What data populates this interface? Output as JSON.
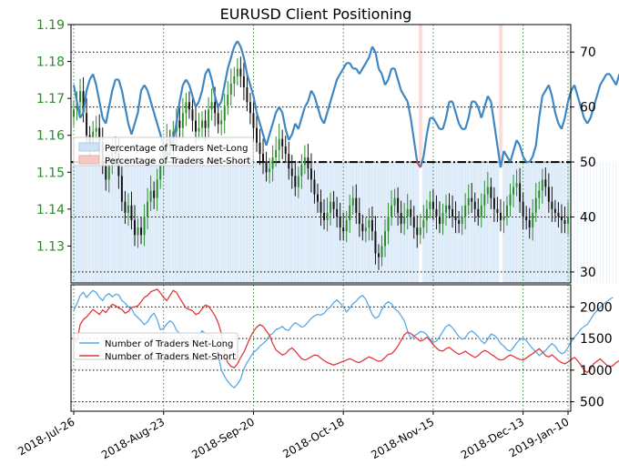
{
  "chart_data": [
    {
      "type": "line",
      "title": "EURUSD Client Positioning",
      "x_tick_labels": [
        "2018-Jul-26",
        "2018-Aug-23",
        "2018-Sep-20",
        "2018-Oct-18",
        "2018-Nov-15",
        "2018-Dec-13",
        "2019-Jan-10"
      ],
      "left_axis": {
        "ticks": [
          "1.13",
          "1.14",
          "1.15",
          "1.16",
          "1.17",
          "1.18",
          "1.19"
        ],
        "ylim": [
          1.12,
          1.19
        ],
        "color": "#2a8a2a"
      },
      "right_axis": {
        "ticks": [
          "30",
          "40",
          "50",
          "60",
          "70"
        ],
        "ylim": [
          28,
          75
        ]
      },
      "legend": {
        "position": "upper-left",
        "entries": [
          {
            "label": "Percentage of Traders Net-Long",
            "color": "#cfe3f7"
          },
          {
            "label": "Percentage of Traders Net-Short",
            "color": "#f7c9c4"
          }
        ]
      },
      "reference_line": {
        "y": 50,
        "style": "dash-dot",
        "color": "#000000"
      },
      "series": [
        {
          "kind": "candlestick",
          "axis": "left",
          "colors": {
            "up": "#2a8a2a",
            "down": "#111111"
          },
          "close": [
            1.167,
            1.169,
            1.172,
            1.166,
            1.16,
            1.158,
            1.161,
            1.162,
            1.158,
            1.152,
            1.148,
            1.152,
            1.156,
            1.155,
            1.149,
            1.142,
            1.139,
            1.141,
            1.137,
            1.133,
            1.135,
            1.133,
            1.138,
            1.142,
            1.145,
            1.143,
            1.148,
            1.152,
            1.156,
            1.159,
            1.157,
            1.161,
            1.164,
            1.162,
            1.166,
            1.169,
            1.167,
            1.164,
            1.161,
            1.162,
            1.164,
            1.162,
            1.167,
            1.169,
            1.166,
            1.163,
            1.164,
            1.168,
            1.171,
            1.174,
            1.176,
            1.178,
            1.176,
            1.173,
            1.169,
            1.166,
            1.162,
            1.158,
            1.155,
            1.153,
            1.15,
            1.151,
            1.154,
            1.156,
            1.159,
            1.157,
            1.155,
            1.151,
            1.149,
            1.146,
            1.149,
            1.152,
            1.154,
            1.151,
            1.148,
            1.144,
            1.142,
            1.139,
            1.137,
            1.139,
            1.142,
            1.14,
            1.138,
            1.135,
            1.134,
            1.137,
            1.141,
            1.143,
            1.139,
            1.136,
            1.134,
            1.135,
            1.137,
            1.134,
            1.128,
            1.127,
            1.13,
            1.134,
            1.138,
            1.141,
            1.143,
            1.139,
            1.136,
            1.138,
            1.14,
            1.138,
            1.135,
            1.133,
            1.135,
            1.137,
            1.14,
            1.142,
            1.14,
            1.138,
            1.136,
            1.139,
            1.141,
            1.14,
            1.138,
            1.137,
            1.136,
            1.138,
            1.141,
            1.143,
            1.142,
            1.14,
            1.138,
            1.141,
            1.144,
            1.146,
            1.143,
            1.14,
            1.139,
            1.137,
            1.138,
            1.141,
            1.144,
            1.146,
            1.147,
            1.142,
            1.138,
            1.137,
            1.135,
            1.139,
            1.143,
            1.145,
            1.148,
            1.146,
            1.142,
            1.14,
            1.139,
            1.138,
            1.137,
            1.136,
            1.138
          ]
        },
        {
          "name": "Percentage of Traders Net-Long",
          "axis": "right",
          "color": "#3d87c4",
          "values": [
            64,
            61,
            58,
            59,
            63,
            65,
            66,
            64,
            61,
            58,
            57,
            60,
            63,
            65,
            65,
            63,
            60,
            57,
            55,
            57,
            59,
            63,
            64,
            63,
            61,
            59,
            57,
            55,
            53,
            51,
            52,
            54,
            57,
            61,
            64,
            65,
            64,
            62,
            60,
            61,
            63,
            66,
            67,
            65,
            62,
            60,
            61,
            64,
            67,
            69,
            71,
            72,
            71,
            69,
            66,
            64,
            62,
            59,
            57,
            55,
            53,
            55,
            57,
            59,
            60,
            59,
            56,
            54,
            55,
            57,
            56,
            58,
            60,
            61,
            63,
            62,
            60,
            58,
            57,
            59,
            61,
            63,
            65,
            66,
            67,
            68,
            68,
            67,
            67,
            66,
            67,
            68,
            69,
            71,
            70,
            67,
            66,
            64,
            65,
            67,
            67,
            65,
            63,
            62,
            61,
            58,
            54,
            50,
            49,
            51,
            55,
            58,
            58,
            57,
            56,
            56,
            58,
            61,
            61,
            59,
            57,
            56,
            56,
            58,
            61,
            61,
            60,
            58,
            60,
            62,
            61,
            57,
            53,
            49,
            52,
            51,
            50,
            52,
            54,
            53,
            51,
            50,
            50,
            51,
            53,
            58,
            62,
            63,
            64,
            62,
            59,
            57,
            56,
            58,
            61,
            63,
            64,
            62,
            60,
            58,
            57,
            58,
            60,
            62,
            64,
            65,
            66,
            66,
            65,
            64,
            66
          ]
        }
      ]
    },
    {
      "type": "line",
      "y_ticks": [
        "500",
        "1000",
        "1500",
        "2000"
      ],
      "ylim": [
        350,
        2350
      ],
      "legend": {
        "position": "center-left",
        "entries": [
          {
            "label": "Number of Traders Net-Long",
            "color": "#56a8e8"
          },
          {
            "label": "Number of Traders Net-Short",
            "color": "#e0393a"
          }
        ]
      },
      "series": [
        {
          "name": "Number of Traders Net-Long",
          "color": "#56a8e8",
          "values": [
            1950,
            2050,
            2180,
            2230,
            2150,
            2210,
            2260,
            2230,
            2150,
            2100,
            2180,
            2210,
            2160,
            2200,
            2190,
            2100,
            2060,
            2000,
            1970,
            1880,
            1830,
            1780,
            1720,
            1760,
            1850,
            1900,
            1800,
            1640,
            1660,
            1730,
            1780,
            1740,
            1630,
            1580,
            1510,
            1450,
            1400,
            1470,
            1500,
            1550,
            1620,
            1580,
            1560,
            1550,
            1400,
            1250,
            1000,
            900,
            820,
            760,
            720,
            780,
            860,
            1020,
            1120,
            1200,
            1280,
            1320,
            1380,
            1420,
            1470,
            1550,
            1580,
            1640,
            1660,
            1690,
            1640,
            1630,
            1700,
            1750,
            1720,
            1680,
            1700,
            1760,
            1820,
            1860,
            1880,
            1870,
            1900,
            1960,
            2000,
            2070,
            2110,
            2060,
            2000,
            1920,
            1980,
            2050,
            2090,
            2150,
            2180,
            2120,
            2000,
            1880,
            1820,
            1850,
            1960,
            2040,
            2080,
            2050,
            1970,
            1930,
            1860,
            1780,
            1620,
            1500,
            1540,
            1570,
            1610,
            1600,
            1560,
            1490,
            1440,
            1460,
            1530,
            1610,
            1690,
            1720,
            1670,
            1600,
            1530,
            1490,
            1510,
            1590,
            1620,
            1580,
            1530,
            1460,
            1420,
            1490,
            1570,
            1550,
            1500,
            1420,
            1380,
            1320,
            1300,
            1360,
            1430,
            1480,
            1510,
            1470,
            1400,
            1340,
            1290,
            1230,
            1270,
            1310,
            1370,
            1420,
            1380,
            1300,
            1260,
            1280,
            1360,
            1450,
            1520,
            1580,
            1650,
            1690,
            1720,
            1800,
            1880,
            1940,
            1990,
            2040,
            2080,
            2120,
            2150
          ]
        },
        {
          "name": "Number of Traders Net-Short",
          "color": "#e0393a",
          "values": [
            1520,
            1450,
            1720,
            1800,
            1840,
            1900,
            1960,
            1920,
            1880,
            1950,
            1910,
            1980,
            2040,
            2020,
            1980,
            1960,
            1900,
            1930,
            1990,
            2000,
            2020,
            2080,
            2150,
            2180,
            2240,
            2260,
            2280,
            2220,
            2150,
            2100,
            2180,
            2260,
            2230,
            2140,
            2060,
            1980,
            1960,
            1940,
            1880,
            1900,
            1970,
            2030,
            2010,
            1940,
            1860,
            1750,
            1580,
            1250,
            1120,
            1060,
            1040,
            1100,
            1200,
            1280,
            1400,
            1520,
            1610,
            1680,
            1720,
            1690,
            1620,
            1550,
            1420,
            1320,
            1280,
            1240,
            1260,
            1320,
            1350,
            1300,
            1240,
            1180,
            1160,
            1180,
            1210,
            1240,
            1230,
            1190,
            1150,
            1120,
            1100,
            1080,
            1100,
            1120,
            1140,
            1160,
            1180,
            1160,
            1130,
            1120,
            1150,
            1180,
            1210,
            1190,
            1160,
            1140,
            1150,
            1200,
            1250,
            1260,
            1310,
            1380,
            1470,
            1560,
            1600,
            1580,
            1540,
            1500,
            1460,
            1480,
            1520,
            1470,
            1400,
            1350,
            1310,
            1300,
            1340,
            1360,
            1320,
            1280,
            1250,
            1270,
            1300,
            1260,
            1230,
            1200,
            1230,
            1280,
            1310,
            1290,
            1250,
            1220,
            1180,
            1160,
            1170,
            1210,
            1240,
            1220,
            1190,
            1170,
            1160,
            1190,
            1230,
            1260,
            1300,
            1340,
            1290,
            1230,
            1210,
            1240,
            1200,
            1150,
            1120,
            1100,
            1130,
            1170,
            1200,
            1150,
            1080,
            1000,
            960,
            1020,
            1100,
            1140,
            1180,
            1130,
            1080,
            1050,
            1070,
            1120,
            1150
          ]
        }
      ]
    }
  ]
}
